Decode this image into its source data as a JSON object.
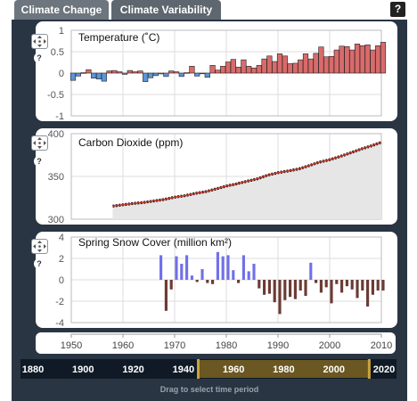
{
  "tabs": [
    {
      "label": "Climate Change",
      "active": true
    },
    {
      "label": "Climate Variability",
      "active": false
    }
  ],
  "help_label": "?",
  "timeline": {
    "years": [
      "1880",
      "1900",
      "1920",
      "1940",
      "1960",
      "1980",
      "2000",
      "2020"
    ],
    "selection": [
      1950,
      2010
    ],
    "hint": "Drag to select time period"
  },
  "colors": {
    "positive_temp": "#d86b6b",
    "negative_temp": "#5b95d8",
    "co2_line": "#c0392b",
    "co2_fill": "#e6e6e6",
    "snow_positive": "#7070ea",
    "snow_negative": "#6a3b34",
    "panel_bg": "#2a3543",
    "selection_fill": "#6b5722",
    "selection_edge": "#c9a23a"
  },
  "chart_data": [
    {
      "type": "bar",
      "title": "Temperature (˚C)",
      "xlim": [
        1950,
        2010
      ],
      "ylim": [
        -1,
        1
      ],
      "yticks": [
        "-1",
        "-0.5",
        "0",
        "0.5",
        "1"
      ],
      "yticks_values": [
        -1,
        -0.5,
        0,
        0.5,
        1
      ],
      "grid": true,
      "x": [
        1950,
        1951,
        1952,
        1953,
        1954,
        1955,
        1956,
        1957,
        1958,
        1959,
        1960,
        1961,
        1962,
        1963,
        1964,
        1965,
        1966,
        1967,
        1968,
        1969,
        1970,
        1971,
        1972,
        1973,
        1974,
        1975,
        1976,
        1977,
        1978,
        1979,
        1980,
        1981,
        1982,
        1983,
        1984,
        1985,
        1986,
        1987,
        1988,
        1989,
        1990,
        1991,
        1992,
        1993,
        1994,
        1995,
        1996,
        1997,
        1998,
        1999,
        2000,
        2001,
        2002,
        2003,
        2004,
        2005,
        2006,
        2007,
        2008,
        2009,
        2010
      ],
      "values": [
        -0.17,
        -0.07,
        0.01,
        0.08,
        -0.12,
        -0.14,
        -0.19,
        0.05,
        0.06,
        0.03,
        -0.03,
        0.06,
        0.03,
        0.05,
        -0.2,
        -0.11,
        -0.06,
        -0.02,
        -0.08,
        0.05,
        0.03,
        -0.08,
        0.01,
        0.16,
        -0.07,
        -0.01,
        -0.1,
        0.18,
        0.07,
        0.16,
        0.26,
        0.32,
        0.14,
        0.31,
        0.16,
        0.12,
        0.18,
        0.33,
        0.4,
        0.27,
        0.45,
        0.4,
        0.22,
        0.23,
        0.31,
        0.45,
        0.33,
        0.46,
        0.61,
        0.38,
        0.39,
        0.54,
        0.63,
        0.62,
        0.54,
        0.68,
        0.64,
        0.66,
        0.54,
        0.64,
        0.72
      ]
    },
    {
      "type": "line",
      "title": "Carbon Dioxide (ppm)",
      "xlim": [
        1950,
        2010
      ],
      "ylim": [
        300,
        400
      ],
      "yticks": [
        "300",
        "350",
        "400"
      ],
      "yticks_values": [
        300,
        350,
        400
      ],
      "grid": true,
      "x": [
        1958,
        1960,
        1962,
        1964,
        1966,
        1968,
        1970,
        1972,
        1974,
        1976,
        1978,
        1980,
        1982,
        1984,
        1986,
        1988,
        1990,
        1992,
        1994,
        1996,
        1998,
        2000,
        2002,
        2004,
        2006,
        2008,
        2010
      ],
      "values": [
        315.3,
        316.9,
        318.4,
        319.6,
        321.4,
        323.1,
        325.7,
        327.5,
        330.2,
        332.2,
        335.4,
        338.8,
        341.4,
        344.4,
        347.2,
        351.5,
        354.4,
        356.5,
        358.8,
        362.6,
        366.7,
        369.6,
        373.3,
        377.5,
        381.9,
        385.6,
        389.9
      ]
    },
    {
      "type": "bar",
      "title": "Spring Snow Cover (million km²)",
      "xlim": [
        1950,
        2010
      ],
      "ylim": [
        -4,
        4
      ],
      "yticks": [
        "-4",
        "-2",
        "0",
        "2",
        "4"
      ],
      "yticks_values": [
        -4,
        -2,
        0,
        2,
        4
      ],
      "grid": true,
      "x": [
        1967,
        1968,
        1969,
        1970,
        1971,
        1972,
        1973,
        1974,
        1975,
        1976,
        1977,
        1978,
        1979,
        1980,
        1981,
        1982,
        1983,
        1984,
        1985,
        1986,
        1987,
        1988,
        1989,
        1990,
        1991,
        1992,
        1993,
        1994,
        1995,
        1996,
        1997,
        1998,
        1999,
        2000,
        2001,
        2002,
        2003,
        2004,
        2005,
        2006,
        2007,
        2008,
        2009,
        2010
      ],
      "values": [
        2.3,
        -2.9,
        -0.9,
        2.2,
        1.5,
        2.3,
        0.4,
        -0.2,
        1.0,
        -0.3,
        -0.4,
        2.6,
        2.2,
        2.3,
        0.9,
        -0.3,
        2.3,
        0.8,
        1.5,
        -0.8,
        -1.4,
        -1.3,
        -2.1,
        -3.2,
        -1.9,
        -1.6,
        -1.8,
        -1.0,
        -1.5,
        1.6,
        -0.3,
        -1.2,
        -0.7,
        -2.2,
        -0.4,
        -1.2,
        -0.6,
        -0.9,
        -1.7,
        -1.0,
        -2.5,
        -1.4,
        -1.0,
        -1.0
      ]
    }
  ],
  "xaxis": {
    "ticks": [
      "1950",
      "1960",
      "1970",
      "1980",
      "1990",
      "2000",
      "2010"
    ],
    "ticks_values": [
      1950,
      1960,
      1970,
      1980,
      1990,
      2000,
      2010
    ]
  }
}
